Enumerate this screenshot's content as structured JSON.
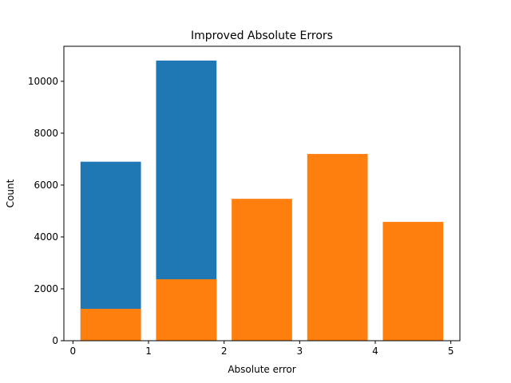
{
  "chart_data": {
    "type": "bar",
    "title": "Improved Absolute Errors",
    "xlabel": "Absolute error",
    "ylabel": "Count",
    "xlim": [
      -0.12,
      5.12
    ],
    "ylim": [
      0,
      11350
    ],
    "xticks": [
      0,
      1,
      2,
      3,
      4,
      5
    ],
    "yticks": [
      0,
      2000,
      4000,
      6000,
      8000,
      10000
    ],
    "bar_width": 0.8,
    "grid": false,
    "series": [
      {
        "color": "#1f77b4",
        "bars": [
          {
            "x": 0.5,
            "value": 6900
          },
          {
            "x": 1.5,
            "value": 10800
          }
        ]
      },
      {
        "color": "#ff7f0e",
        "bars": [
          {
            "x": 0.5,
            "value": 1230
          },
          {
            "x": 1.5,
            "value": 2370
          },
          {
            "x": 2.5,
            "value": 5470
          },
          {
            "x": 3.5,
            "value": 7200
          },
          {
            "x": 4.5,
            "value": 4580
          }
        ]
      }
    ]
  }
}
